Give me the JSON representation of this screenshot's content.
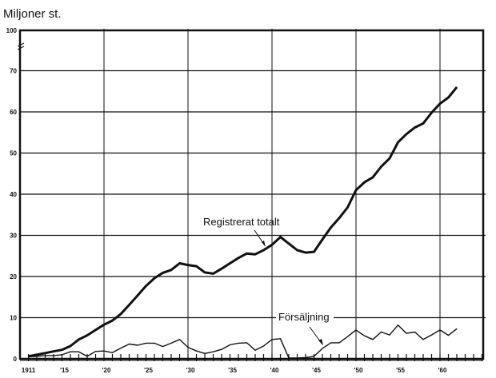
{
  "chart_data": {
    "type": "line",
    "title": "",
    "ylabel": "Miljoner st.",
    "xlabel": "",
    "xlim": [
      1910,
      1966.5
    ],
    "ylim": [
      0,
      100
    ],
    "y_axis_break": "between 70 and 100",
    "grid": true,
    "y_ticks": [
      0,
      10,
      20,
      30,
      40,
      50,
      60,
      70,
      100
    ],
    "y_tick_labels": [
      "0",
      "10",
      "20",
      "30",
      "40",
      "50",
      "60",
      "70",
      "100"
    ],
    "x_tick_values": [
      1911,
      1915,
      1920,
      1925,
      1930,
      1935,
      1940,
      1945,
      1950,
      1955,
      1960
    ],
    "x_tick_labels": [
      "1911",
      "'15",
      "'20",
      "'25",
      "'30",
      "'35",
      "'40",
      "'45",
      "'50",
      "'55",
      "'60"
    ],
    "x": [
      1911,
      1912,
      1913,
      1914,
      1915,
      1916,
      1917,
      1918,
      1919,
      1920,
      1921,
      1922,
      1923,
      1924,
      1925,
      1926,
      1927,
      1928,
      1929,
      1930,
      1931,
      1932,
      1933,
      1934,
      1935,
      1936,
      1937,
      1938,
      1939,
      1940,
      1941,
      1942,
      1943,
      1944,
      1945,
      1946,
      1947,
      1948,
      1949,
      1950,
      1951,
      1952,
      1953,
      1954,
      1955,
      1956,
      1957,
      1958,
      1959,
      1960,
      1961,
      1962
    ],
    "series": [
      {
        "name": "Registrerat totalt",
        "color": "#111111",
        "values": [
          0.6,
          1.0,
          1.4,
          1.8,
          2.2,
          3.1,
          4.7,
          5.7,
          7.0,
          8.3,
          9.3,
          10.9,
          13.1,
          15.4,
          17.7,
          19.6,
          20.9,
          21.6,
          23.2,
          22.8,
          22.5,
          21.0,
          20.7,
          21.9,
          23.2,
          24.5,
          25.6,
          25.4,
          26.4,
          27.7,
          29.6,
          28.0,
          26.4,
          25.8,
          26.0,
          29.0,
          31.9,
          34.2,
          36.8,
          41.0,
          42.9,
          44.1,
          46.7,
          48.7,
          52.6,
          54.6,
          56.2,
          57.2,
          59.8,
          62.0,
          63.5,
          66.0
        ]
      },
      {
        "name": "Försäljning",
        "color": "#111111",
        "values": [
          0.5,
          0.6,
          0.8,
          0.8,
          1.0,
          1.7,
          1.7,
          0.6,
          1.8,
          1.9,
          1.5,
          2.6,
          3.6,
          3.3,
          3.8,
          3.8,
          3.0,
          3.8,
          4.7,
          2.8,
          1.9,
          1.3,
          1.7,
          2.3,
          3.4,
          3.8,
          3.9,
          2.1,
          3.1,
          4.7,
          4.9,
          0.2,
          0.2,
          0.3,
          0.6,
          2.5,
          3.9,
          3.9,
          5.4,
          7.0,
          5.6,
          4.7,
          6.5,
          5.8,
          8.2,
          6.2,
          6.5,
          4.7,
          5.8,
          7.0,
          5.7,
          7.3
        ]
      }
    ],
    "annotations": [
      "Registrerat totalt",
      "Försäljning"
    ],
    "legend": "none (inline labels with arrows)"
  }
}
